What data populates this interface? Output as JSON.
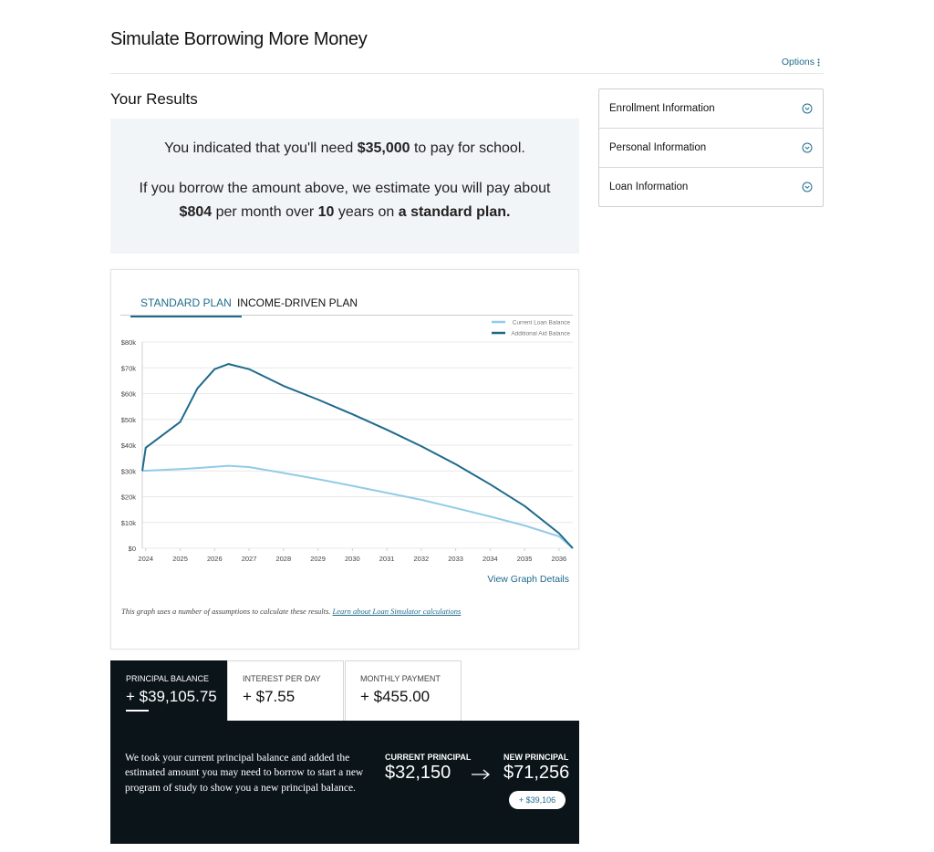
{
  "header": {
    "title": "Simulate Borrowing More Money",
    "options": "Options"
  },
  "results": {
    "heading": "Your Results",
    "summary": {
      "line1": [
        "You indicated that you'll need",
        "$35,000",
        "to pay for school."
      ],
      "line2": "If you borrow the amount above, we estimate you will pay about",
      "line3": [
        "$804",
        "per month over",
        "10",
        "years on",
        "a standard plan."
      ]
    }
  },
  "accordion": [
    "Enrollment Information",
    "Personal Information",
    "Loan Information"
  ],
  "chart_tabs": [
    "STANDARD PLAN",
    "INCOME-DRIVEN PLAN"
  ],
  "chart_data": {
    "type": "line",
    "x": [
      2023.9,
      2024,
      2025,
      2025.5,
      2026,
      2026.4,
      2027,
      2028,
      2029,
      2030,
      2031,
      2032,
      2033,
      2034,
      2035,
      2036,
      2036.4
    ],
    "series": [
      {
        "name": "Current Loan Balance",
        "color": "#93cbe6",
        "values": [
          30000,
          30100,
          30700,
          31100,
          31600,
          32000,
          31500,
          29200,
          26800,
          24200,
          21500,
          18800,
          15600,
          12300,
          8800,
          4600,
          0
        ]
      },
      {
        "name": "Additional Aid Balance",
        "color": "#1f6a8c",
        "values": [
          30000,
          39000,
          49000,
          62000,
          69500,
          71500,
          69500,
          63000,
          57700,
          52000,
          46000,
          39600,
          32600,
          24800,
          16400,
          5800,
          0
        ]
      }
    ],
    "xlim": [
      2023.9,
      2036.4
    ],
    "xticks": [
      2024,
      2025,
      2026,
      2027,
      2028,
      2029,
      2030,
      2031,
      2032,
      2033,
      2034,
      2035,
      2036
    ],
    "ylim": [
      0,
      80000
    ],
    "yticks": [
      {
        "value": 0,
        "label": "$0"
      },
      {
        "value": 10000,
        "label": "$10k"
      },
      {
        "value": 20000,
        "label": "$20k"
      },
      {
        "value": 30000,
        "label": "$30k"
      },
      {
        "value": 40000,
        "label": "$40k"
      },
      {
        "value": 50000,
        "label": "$50k"
      },
      {
        "value": 60000,
        "label": "$60k"
      },
      {
        "value": 70000,
        "label": "$70k"
      },
      {
        "value": 80000,
        "label": "$80k"
      }
    ],
    "grid": true
  },
  "chart_links": {
    "details": "View Graph Details",
    "note": "This graph uses a number of assumptions to calculate these results.",
    "note_link": "Learn about Loan Simulator calculations"
  },
  "metric_tabs": [
    {
      "label": "PRINCIPAL BALANCE",
      "value": "+ $39,105.75"
    },
    {
      "label": "INTEREST PER DAY",
      "value": "+ $7.55"
    },
    {
      "label": "MONTHLY PAYMENT",
      "value": "+ $455.00"
    }
  ],
  "explanation": {
    "text": "We took your current principal balance and added the estimated amount you may need to borrow to start a new program of study to show you a new principal balance.",
    "current_label": "CURRENT PRINCIPAL",
    "current_value": "$32,150",
    "new_label": "NEW PRINCIPAL",
    "new_value": "$71,256",
    "difference": "+ $39,106"
  }
}
